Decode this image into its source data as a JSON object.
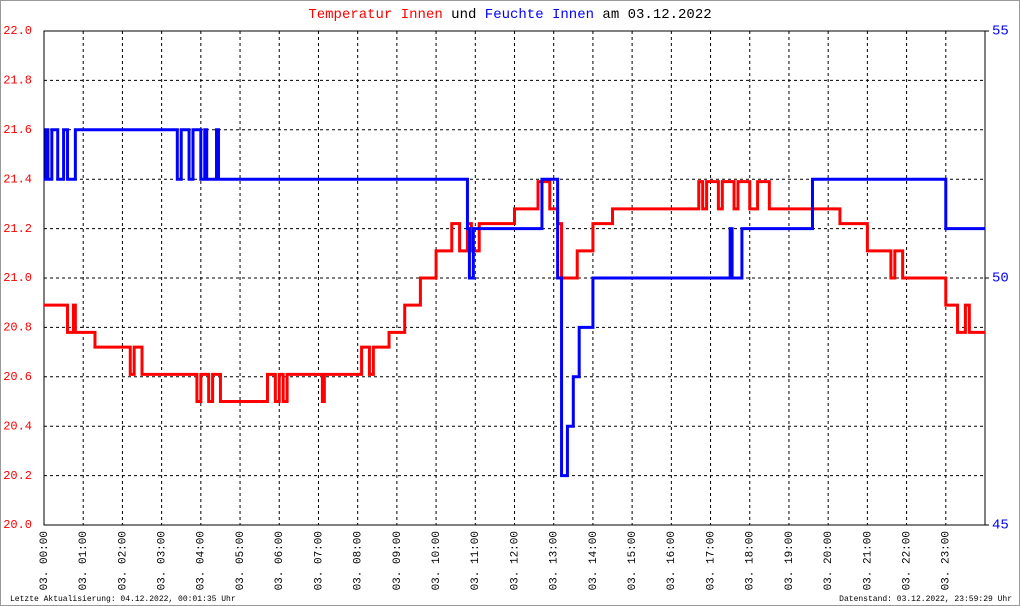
{
  "chart_data": {
    "type": "line",
    "title_parts": [
      "und",
      "am 03.12.2022"
    ],
    "footer_left": "Letzte Aktualisierung: 04.12.2022, 00:01:35 Uhr",
    "footer_right": "Datenstand: 03.12.2022, 23:59:29 Uhr",
    "xlim": [
      0,
      24
    ],
    "xticks": [
      {
        "value": 0,
        "label": "03. 00:00"
      },
      {
        "value": 1,
        "label": "03. 01:00"
      },
      {
        "value": 2,
        "label": "03. 02:00"
      },
      {
        "value": 3,
        "label": "03. 03:00"
      },
      {
        "value": 4,
        "label": "03. 04:00"
      },
      {
        "value": 5,
        "label": "03. 05:00"
      },
      {
        "value": 6,
        "label": "03. 06:00"
      },
      {
        "value": 7,
        "label": "03. 07:00"
      },
      {
        "value": 8,
        "label": "03. 08:00"
      },
      {
        "value": 9,
        "label": "03. 09:00"
      },
      {
        "value": 10,
        "label": "03. 10:00"
      },
      {
        "value": 11,
        "label": "03. 11:00"
      },
      {
        "value": 12,
        "label": "03. 12:00"
      },
      {
        "value": 13,
        "label": "03. 13:00"
      },
      {
        "value": 14,
        "label": "03. 14:00"
      },
      {
        "value": 15,
        "label": "03. 15:00"
      },
      {
        "value": 16,
        "label": "03. 16:00"
      },
      {
        "value": 17,
        "label": "03. 17:00"
      },
      {
        "value": 18,
        "label": "03. 18:00"
      },
      {
        "value": 19,
        "label": "03. 19:00"
      },
      {
        "value": 20,
        "label": "03. 20:00"
      },
      {
        "value": 21,
        "label": "03. 21:00"
      },
      {
        "value": 22,
        "label": "03. 22:00"
      },
      {
        "value": 23,
        "label": "03. 23:00"
      }
    ],
    "ylim": [
      20,
      22
    ],
    "yticks": [
      {
        "value": 20,
        "label": "20.0"
      },
      20.2,
      20.4,
      20.6,
      20.8,
      {
        "value": 21,
        "label": "21.0"
      },
      21.2,
      21.4,
      21.6,
      21.8,
      {
        "value": 22,
        "label": "22.0"
      }
    ],
    "y2lim": [
      45,
      55
    ],
    "y2ticks": [
      45,
      50,
      55
    ],
    "grid": true,
    "series": [
      {
        "name": "Temperatur Innen",
        "color": "#ff0000",
        "x": [
          0,
          0.6,
          0.6,
          0.75,
          0.75,
          0.8,
          0.8,
          1.3,
          1.3,
          2.2,
          2.2,
          2.3,
          2.3,
          2.5,
          2.5,
          3.9,
          3.9,
          4.0,
          4.0,
          4.2,
          4.2,
          4.3,
          4.3,
          4.5,
          4.5,
          5.7,
          5.7,
          5.9,
          5.9,
          6.0,
          6.0,
          6.1,
          6.1,
          6.2,
          6.2,
          7.1,
          7.1,
          7.15,
          7.15,
          8.1,
          8.1,
          8.3,
          8.3,
          8.4,
          8.4,
          8.8,
          8.8,
          9.2,
          9.2,
          9.6,
          9.6,
          10.0,
          10.0,
          10.4,
          10.4,
          10.6,
          10.6,
          10.8,
          10.8,
          10.9,
          10.9,
          11.1,
          11.1,
          12.0,
          12.0,
          12.6,
          12.6,
          12.9,
          12.9,
          13.1,
          13.1,
          13.2,
          13.2,
          13.6,
          13.6,
          14.0,
          14.0,
          14.5,
          14.5,
          16.7,
          16.7,
          16.8,
          16.8,
          16.9,
          16.9,
          17.2,
          17.2,
          17.3,
          17.3,
          17.6,
          17.6,
          17.7,
          17.7,
          18.0,
          18.0,
          18.2,
          18.2,
          18.5,
          18.5,
          20.3,
          20.3,
          21.0,
          21.0,
          21.6,
          21.6,
          21.7,
          21.7,
          21.9,
          21.9,
          23.0,
          23.0,
          23.3,
          23.3,
          23.5,
          23.5,
          23.6,
          23.6,
          24
        ],
        "values": [
          20.89,
          20.89,
          20.78,
          20.78,
          20.89,
          20.89,
          20.78,
          20.78,
          20.72,
          20.72,
          20.61,
          20.61,
          20.72,
          20.72,
          20.61,
          20.61,
          20.5,
          20.5,
          20.61,
          20.61,
          20.5,
          20.5,
          20.61,
          20.61,
          20.5,
          20.5,
          20.61,
          20.61,
          20.5,
          20.5,
          20.61,
          20.61,
          20.5,
          20.5,
          20.61,
          20.61,
          20.5,
          20.5,
          20.61,
          20.61,
          20.72,
          20.72,
          20.61,
          20.61,
          20.72,
          20.72,
          20.78,
          20.78,
          20.89,
          20.89,
          21.0,
          21.0,
          21.11,
          21.11,
          21.22,
          21.22,
          21.11,
          21.11,
          21.22,
          21.22,
          21.11,
          21.11,
          21.22,
          21.22,
          21.28,
          21.28,
          21.39,
          21.39,
          21.28,
          21.28,
          21.22,
          21.22,
          21.0,
          21.0,
          21.11,
          21.11,
          21.22,
          21.22,
          21.28,
          21.28,
          21.39,
          21.39,
          21.28,
          21.28,
          21.39,
          21.39,
          21.28,
          21.28,
          21.39,
          21.39,
          21.28,
          21.28,
          21.39,
          21.39,
          21.28,
          21.28,
          21.39,
          21.39,
          21.28,
          21.28,
          21.22,
          21.22,
          21.11,
          21.11,
          21.0,
          21.0,
          21.11,
          21.11,
          21.0,
          21.0,
          20.89,
          20.89,
          20.78,
          20.78,
          20.89,
          20.89,
          20.78,
          20.78
        ]
      },
      {
        "name": "Feuchte Innen",
        "color": "#0000ff",
        "axis": "y2",
        "x": [
          0,
          0.05,
          0.05,
          0.1,
          0.1,
          0.2,
          0.2,
          0.35,
          0.35,
          0.5,
          0.5,
          0.6,
          0.6,
          0.8,
          0.8,
          3.4,
          3.4,
          3.5,
          3.5,
          3.7,
          3.7,
          3.8,
          3.8,
          4.0,
          4.0,
          4.1,
          4.1,
          4.15,
          4.15,
          4.4,
          4.4,
          4.45,
          4.45,
          10.8,
          10.8,
          10.85,
          10.85,
          10.95,
          10.95,
          12.7,
          12.7,
          13.1,
          13.1,
          13.2,
          13.2,
          13.35,
          13.35,
          13.5,
          13.5,
          13.65,
          13.65,
          14.0,
          14.0,
          17.5,
          17.5,
          17.55,
          17.55,
          17.8,
          17.8,
          19.6,
          19.6,
          23.0,
          23.0,
          24
        ],
        "values": [
          52,
          52,
          53,
          53,
          52,
          52,
          53,
          53,
          52,
          52,
          53,
          53,
          52,
          52,
          53,
          53,
          52,
          52,
          53,
          53,
          52,
          52,
          53,
          53,
          52,
          52,
          53,
          53,
          52,
          52,
          53,
          53,
          52,
          52,
          51,
          51,
          50,
          50,
          51,
          51,
          52,
          52,
          50,
          50,
          46,
          46,
          47,
          47,
          48,
          48,
          49,
          49,
          50,
          50,
          51,
          51,
          50,
          50,
          51,
          51,
          52,
          52,
          51,
          51
        ]
      }
    ]
  }
}
